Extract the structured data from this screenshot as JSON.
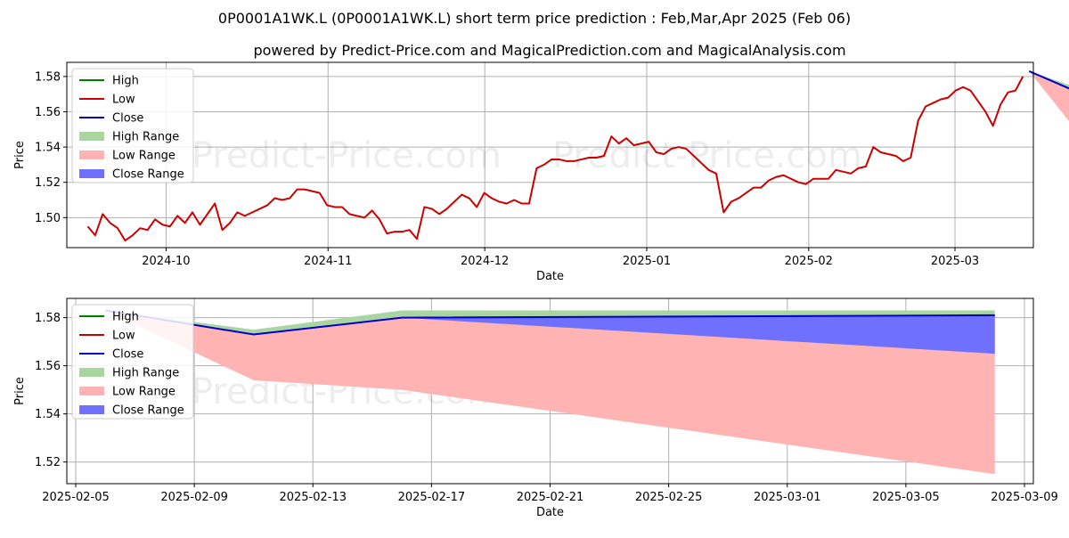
{
  "title": "0P0001A1WK.L (0P0001A1WK.L) short term price prediction : Feb,Mar,Apr 2025 (Feb 06)",
  "subtitle": "powered by Predict-Price.com and MagicalPrediction.com and MagicalAnalysis.com",
  "watermark": "Predict-Price.com",
  "colors": {
    "high": "#008000",
    "low": "#cc0000",
    "close": "#0000cc",
    "high_range": "#a8d5a0",
    "low_range": "#ffb3b3",
    "close_range": "#7070ff"
  },
  "chart_data": [
    {
      "type": "line",
      "xlabel": "Date",
      "ylabel": "Price",
      "grid": true,
      "legend_position": "top-left",
      "xlim": [
        "2024-09-12",
        "2025-03-16"
      ],
      "ylim": [
        1.483,
        1.588
      ],
      "x_ticks": [
        "2024-10-01",
        "2024-11-01",
        "2024-12-01",
        "2025-01-01",
        "2025-02-01",
        "2025-03-01"
      ],
      "x_tick_labels": [
        "2024-10",
        "2024-11",
        "2024-12",
        "2025-01",
        "2025-02",
        "2025-03"
      ],
      "y_ticks": [
        1.5,
        1.52,
        1.54,
        1.56,
        1.58
      ],
      "y_tick_labels": [
        "1.50",
        "1.52",
        "1.54",
        "1.56",
        "1.58"
      ],
      "legend": [
        "High",
        "Low",
        "Close",
        "High Range",
        "Low Range",
        "Close Range"
      ],
      "series": [
        {
          "name": "Low",
          "color_key": "low",
          "points": [
            [
              "2024-09-16",
              1.495
            ],
            [
              "2024-09-17",
              1.49
            ],
            [
              "2024-09-18",
              1.502
            ],
            [
              "2024-09-19",
              1.497
            ],
            [
              "2024-09-20",
              1.494
            ],
            [
              "2024-09-23",
              1.487
            ],
            [
              "2024-09-24",
              1.49
            ],
            [
              "2024-09-25",
              1.494
            ],
            [
              "2024-09-26",
              1.493
            ],
            [
              "2024-09-27",
              1.499
            ],
            [
              "2024-09-30",
              1.496
            ],
            [
              "2024-10-01",
              1.495
            ],
            [
              "2024-10-02",
              1.501
            ],
            [
              "2024-10-03",
              1.497
            ],
            [
              "2024-10-04",
              1.503
            ],
            [
              "2024-10-07",
              1.496
            ],
            [
              "2024-10-08",
              1.502
            ],
            [
              "2024-10-09",
              1.508
            ],
            [
              "2024-10-10",
              1.493
            ],
            [
              "2024-10-11",
              1.497
            ],
            [
              "2024-10-14",
              1.503
            ],
            [
              "2024-10-15",
              1.501
            ],
            [
              "2024-10-16",
              1.503
            ],
            [
              "2024-10-17",
              1.505
            ],
            [
              "2024-10-18",
              1.507
            ],
            [
              "2024-10-21",
              1.511
            ],
            [
              "2024-10-22",
              1.51
            ],
            [
              "2024-10-23",
              1.511
            ],
            [
              "2024-10-24",
              1.516
            ],
            [
              "2024-10-25",
              1.516
            ],
            [
              "2024-10-28",
              1.515
            ],
            [
              "2024-10-29",
              1.514
            ],
            [
              "2024-10-30",
              1.507
            ],
            [
              "2024-10-31",
              1.506
            ],
            [
              "2024-11-01",
              1.506
            ],
            [
              "2024-11-04",
              1.502
            ],
            [
              "2024-11-05",
              1.501
            ],
            [
              "2024-11-06",
              1.5
            ],
            [
              "2024-11-07",
              1.504
            ],
            [
              "2024-11-08",
              1.499
            ],
            [
              "2024-11-11",
              1.491
            ],
            [
              "2024-11-12",
              1.492
            ],
            [
              "2024-11-13",
              1.492
            ],
            [
              "2024-11-14",
              1.493
            ],
            [
              "2024-11-15",
              1.488
            ],
            [
              "2024-11-18",
              1.506
            ],
            [
              "2024-11-19",
              1.505
            ],
            [
              "2024-11-20",
              1.502
            ],
            [
              "2024-11-21",
              1.505
            ],
            [
              "2024-11-22",
              1.509
            ],
            [
              "2024-11-25",
              1.513
            ],
            [
              "2024-11-26",
              1.511
            ],
            [
              "2024-11-27",
              1.506
            ],
            [
              "2024-11-28",
              1.514
            ],
            [
              "2024-11-29",
              1.511
            ],
            [
              "2024-12-02",
              1.509
            ],
            [
              "2024-12-03",
              1.508
            ],
            [
              "2024-12-04",
              1.51
            ],
            [
              "2024-12-05",
              1.508
            ],
            [
              "2024-12-06",
              1.508
            ],
            [
              "2024-12-09",
              1.528
            ],
            [
              "2024-12-10",
              1.53
            ],
            [
              "2024-12-11",
              1.533
            ],
            [
              "2024-12-12",
              1.533
            ],
            [
              "2024-12-13",
              1.532
            ],
            [
              "2024-12-16",
              1.532
            ],
            [
              "2024-12-17",
              1.533
            ],
            [
              "2024-12-18",
              1.534
            ],
            [
              "2024-12-19",
              1.534
            ],
            [
              "2024-12-20",
              1.535
            ],
            [
              "2024-12-23",
              1.546
            ],
            [
              "2024-12-24",
              1.542
            ],
            [
              "2024-12-27",
              1.545
            ],
            [
              "2024-12-30",
              1.541
            ],
            [
              "2024-12-31",
              1.542
            ],
            [
              "2025-01-03",
              1.543
            ],
            [
              "2025-01-06",
              1.537
            ],
            [
              "2025-01-07",
              1.536
            ],
            [
              "2025-01-08",
              1.539
            ],
            [
              "2025-01-09",
              1.54
            ],
            [
              "2025-01-10",
              1.539
            ],
            [
              "2025-01-13",
              1.535
            ],
            [
              "2025-01-14",
              1.531
            ],
            [
              "2025-01-15",
              1.527
            ],
            [
              "2025-01-16",
              1.525
            ],
            [
              "2025-01-17",
              1.503
            ],
            [
              "2025-01-20",
              1.509
            ],
            [
              "2025-01-21",
              1.511
            ],
            [
              "2025-01-22",
              1.514
            ],
            [
              "2025-01-23",
              1.517
            ],
            [
              "2025-01-24",
              1.517
            ],
            [
              "2025-01-27",
              1.521
            ],
            [
              "2025-01-28",
              1.523
            ],
            [
              "2025-01-29",
              1.524
            ],
            [
              "2025-01-30",
              1.522
            ],
            [
              "2025-01-31",
              1.52
            ],
            [
              "2025-02-03",
              1.519
            ],
            [
              "2025-02-04",
              1.522
            ],
            [
              "2025-02-05",
              1.522
            ],
            [
              "2025-02-06",
              1.522
            ],
            [
              "2025-02-07",
              1.527
            ],
            [
              "2025-02-10",
              1.526
            ],
            [
              "2025-02-11",
              1.525
            ],
            [
              "2025-02-12",
              1.528
            ],
            [
              "2025-02-13",
              1.529
            ],
            [
              "2025-02-14",
              1.54
            ],
            [
              "2025-02-17",
              1.537
            ],
            [
              "2025-02-18",
              1.536
            ],
            [
              "2025-02-19",
              1.535
            ],
            [
              "2025-02-20",
              1.532
            ],
            [
              "2025-02-21",
              1.534
            ],
            [
              "2025-02-24",
              1.555
            ],
            [
              "2025-02-25",
              1.563
            ],
            [
              "2025-02-26",
              1.565
            ],
            [
              "2025-02-27",
              1.567
            ],
            [
              "2025-02-28",
              1.568
            ],
            [
              "2025-03-03",
              1.572
            ],
            [
              "2025-03-04",
              1.574
            ],
            [
              "2025-03-05",
              1.572
            ],
            [
              "2025-03-06",
              1.566
            ],
            [
              "2025-03-07",
              1.56
            ],
            [
              "2025-03-10",
              1.552
            ],
            [
              "2025-03-11",
              1.564
            ],
            [
              "2025-03-12",
              1.571
            ],
            [
              "2025-03-13",
              1.572
            ],
            [
              "2025-03-14",
              1.58
            ]
          ]
        },
        {
          "name": "Low",
          "color_key": "low",
          "points": [
            [
              "2025-03-14",
              1.58
            ],
            [
              "2025-03-17",
              1.574
            ],
            [
              "2025-03-18",
              1.569
            ],
            [
              "2025-03-19",
              1.564
            ],
            [
              "2025-03-20",
              1.563
            ],
            [
              "2025-03-21",
              1.565
            ],
            [
              "2025-03-24",
              1.583
            ]
          ]
        }
      ],
      "note_x_axis": "points are listed in trading-day order and drawn evenly spaced as in the original"
    },
    {
      "type": "area",
      "xlabel": "Date",
      "ylabel": "Price",
      "grid": true,
      "legend_position": "top-left",
      "x_ticks": [
        "2025-02-05",
        "2025-02-09",
        "2025-02-13",
        "2025-02-17",
        "2025-02-21",
        "2025-02-25",
        "2025-03-01",
        "2025-03-05",
        "2025-03-09"
      ],
      "y_ticks": [
        1.52,
        1.54,
        1.56,
        1.58
      ],
      "y_tick_labels": [
        "1.52",
        "1.54",
        "1.56",
        "1.58"
      ],
      "legend": [
        "High",
        "Low",
        "Close",
        "High Range",
        "Low Range",
        "Close Range"
      ],
      "x": [
        "2025-02-06",
        "2025-02-11",
        "2025-02-16",
        "2025-03-08"
      ],
      "high_range": {
        "lower": [
          1.583,
          1.573,
          1.58,
          1.581
        ],
        "upper": [
          1.583,
          1.575,
          1.583,
          1.583
        ]
      },
      "low_range": {
        "lower": [
          1.583,
          1.554,
          1.55,
          1.515
        ],
        "upper": [
          1.583,
          1.573,
          1.58,
          1.581
        ]
      },
      "close_range": {
        "lower": [
          1.583,
          1.573,
          1.58,
          1.565
        ],
        "upper": [
          1.583,
          1.573,
          1.58,
          1.581
        ]
      },
      "close": [
        1.583,
        1.573,
        1.58,
        1.581
      ]
    }
  ]
}
